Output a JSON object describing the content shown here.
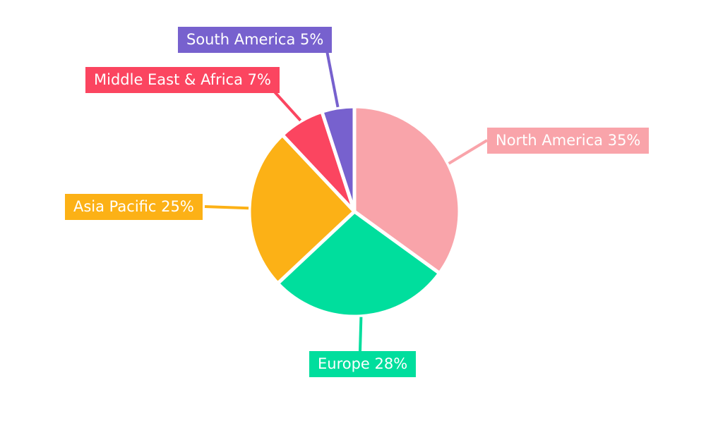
{
  "chart_data": {
    "type": "pie",
    "title": "",
    "categories": [
      "North America",
      "Europe",
      "Asia Pacific",
      "Middle East & Africa",
      "South America"
    ],
    "values": [
      35,
      28,
      25,
      7,
      5
    ],
    "unit": "%",
    "labels": [
      "North America 35%",
      "Europe 28%",
      "Asia Pacific 25%",
      "Middle East & Africa 7%",
      "South America 5%"
    ],
    "colors": [
      "#F9A4AA",
      "#00DE9D",
      "#FCB116",
      "#FB4560",
      "#7761CE"
    ],
    "start_angle_deg": 0,
    "direction": "clockwise",
    "legend": "none",
    "grid": "off",
    "label_text_color": "#FFFFFF",
    "background_color": "#FFFFFF"
  }
}
